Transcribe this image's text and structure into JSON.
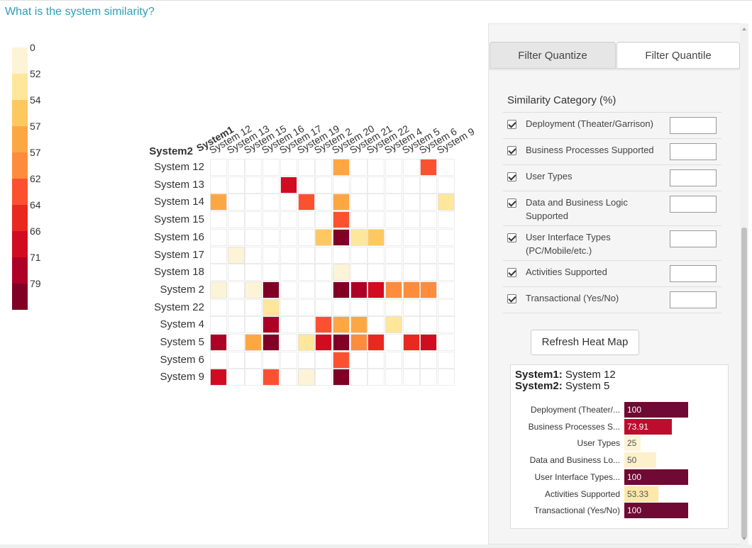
{
  "question": "What is the system similarity?",
  "legend": {
    "labels": [
      "0",
      "52",
      "54",
      "57",
      "57",
      "62",
      "64",
      "66",
      "71",
      "79"
    ],
    "colors": [
      "#fdf3d6",
      "#fee69b",
      "#fec861",
      "#fda743",
      "#fd8c3c",
      "#fc5130",
      "#e9281f",
      "#d10c21",
      "#ae0026",
      "#800026"
    ]
  },
  "heatmap": {
    "corner_col": "System1",
    "corner_row": "System2",
    "columns": [
      "System 12",
      "System 13",
      "System 15",
      "System 16",
      "System 17",
      "System 19",
      "System 2",
      "System 20",
      "System 21",
      "System 22",
      "System 4",
      "System 5",
      "System 6",
      "System 9"
    ],
    "rows": [
      "System 12",
      "System 13",
      "System 14",
      "System 15",
      "System 16",
      "System 17",
      "System 18",
      "System 2",
      "System 22",
      "System 4",
      "System 5",
      "System 6",
      "System 9"
    ],
    "cells": [
      [
        0,
        0,
        0,
        0,
        0,
        0,
        0,
        4,
        0,
        0,
        0,
        0,
        6,
        0
      ],
      [
        0,
        0,
        0,
        0,
        8,
        0,
        0,
        0,
        0,
        0,
        0,
        0,
        0,
        0
      ],
      [
        4,
        0,
        0,
        0,
        0,
        6,
        0,
        4,
        0,
        0,
        0,
        0,
        0,
        2
      ],
      [
        0,
        0,
        0,
        0,
        0,
        0,
        0,
        6,
        0,
        0,
        0,
        0,
        0,
        0
      ],
      [
        0,
        0,
        0,
        0,
        0,
        0,
        3,
        10,
        2,
        3,
        0,
        0,
        0,
        0
      ],
      [
        0,
        1,
        0,
        0,
        0,
        0,
        0,
        0,
        0,
        0,
        0,
        0,
        0,
        0
      ],
      [
        0,
        0,
        0,
        0,
        0,
        0,
        0,
        1,
        0,
        0,
        0,
        0,
        0,
        0
      ],
      [
        1,
        0,
        1,
        10,
        0,
        0,
        0,
        10,
        9,
        8,
        5,
        5,
        5,
        0
      ],
      [
        0,
        0,
        0,
        2,
        0,
        0,
        0,
        0,
        0,
        0,
        0,
        0,
        0,
        0
      ],
      [
        0,
        0,
        0,
        9,
        0,
        0,
        6,
        4,
        4,
        0,
        2,
        0,
        0,
        0
      ],
      [
        9,
        0,
        4,
        10,
        0,
        2,
        8,
        10,
        5,
        7,
        0,
        7,
        8,
        0
      ],
      [
        0,
        0,
        0,
        0,
        0,
        0,
        0,
        6,
        0,
        0,
        0,
        0,
        0,
        0
      ],
      [
        8,
        0,
        0,
        6,
        0,
        1,
        0,
        10,
        0,
        0,
        0,
        0,
        0,
        0
      ]
    ]
  },
  "panel": {
    "tabs": [
      "Filter Quantize",
      "Filter Quantile"
    ],
    "category_title": "Similarity Category (%)",
    "categories": [
      "Deployment (Theater/Garrison)",
      "Business Processes Supported",
      "User Types",
      "Data and Business Logic Supported",
      "User Interface Types (PC/Mobile/etc.)",
      "Activities Supported",
      "Transactional (Yes/No)"
    ],
    "refresh_label": "Refresh Heat Map",
    "detail": {
      "system1_label": "System1:",
      "system1_value": "System 12",
      "system2_label": "System2:",
      "system2_value": "System 5",
      "bars": [
        {
          "label": "Deployment (Theater/...",
          "value": "100",
          "num": 100,
          "color": "#6e0a33",
          "text": "#ffffff"
        },
        {
          "label": "Business Processes S...",
          "value": "73.91",
          "num": 73.91,
          "color": "#bd0d2f",
          "text": "#ffffff"
        },
        {
          "label": "User Types",
          "value": "25",
          "num": 25,
          "color": "#fdf3d6",
          "text": "#555555"
        },
        {
          "label": "Data and Business Lo...",
          "value": "50",
          "num": 50,
          "color": "#fdf0cc",
          "text": "#555555"
        },
        {
          "label": "User Interface Types...",
          "value": "100",
          "num": 100,
          "color": "#6e0a33",
          "text": "#ffffff"
        },
        {
          "label": "Activities Supported",
          "value": "53.33",
          "num": 53.33,
          "color": "#fde8a8",
          "text": "#555555"
        },
        {
          "label": "Transactional (Yes/No)",
          "value": "100",
          "num": 100,
          "color": "#6e0a33",
          "text": "#ffffff"
        }
      ]
    }
  }
}
